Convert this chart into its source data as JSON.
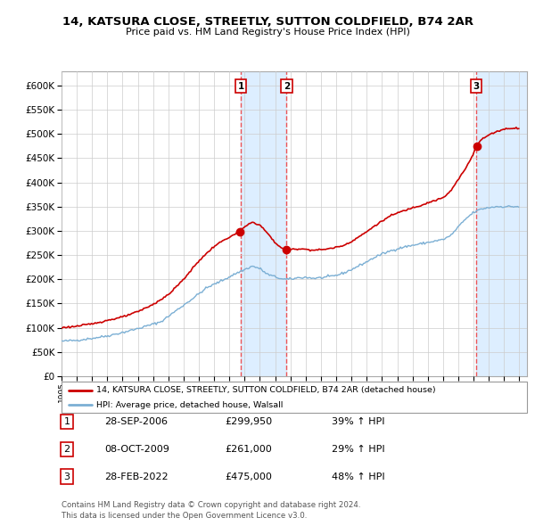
{
  "title": "14, KATSURA CLOSE, STREETLY, SUTTON COLDFIELD, B74 2AR",
  "subtitle": "Price paid vs. HM Land Registry's House Price Index (HPI)",
  "hpi_label": "HPI: Average price, detached house, Walsall",
  "property_label": "14, KATSURA CLOSE, STREETLY, SUTTON COLDFIELD, B74 2AR (detached house)",
  "sale_color": "#cc0000",
  "hpi_color": "#7bafd4",
  "background_color": "#ffffff",
  "grid_color": "#cccccc",
  "ylim": [
    0,
    630000
  ],
  "yticks": [
    0,
    50000,
    100000,
    150000,
    200000,
    250000,
    300000,
    350000,
    400000,
    450000,
    500000,
    550000,
    600000
  ],
  "sale_dates_dec": [
    2006.75,
    2009.75,
    2022.17
  ],
  "sale_prices": [
    299950,
    261000,
    475000
  ],
  "sale_labels": [
    "1",
    "2",
    "3"
  ],
  "vline_color": "#ee4444",
  "shade_color": "#ddeeff",
  "sale_info": [
    {
      "num": "1",
      "date": "28-SEP-2006",
      "price": "£299,950",
      "pct": "39% ↑ HPI"
    },
    {
      "num": "2",
      "date": "08-OCT-2009",
      "price": "£261,000",
      "pct": "29% ↑ HPI"
    },
    {
      "num": "3",
      "date": "28-FEB-2022",
      "price": "£475,000",
      "pct": "48% ↑ HPI"
    }
  ],
  "footer": "Contains HM Land Registry data © Crown copyright and database right 2024.\nThis data is licensed under the Open Government Licence v3.0.",
  "hpi_anchors_x": [
    1995.0,
    1996.0,
    1997.0,
    1998.0,
    1999.0,
    2000.0,
    2001.5,
    2002.5,
    2003.5,
    2004.5,
    2005.5,
    2006.5,
    2007.5,
    2008.0,
    2008.5,
    2009.0,
    2009.5,
    2010.0,
    2010.5,
    2011.0,
    2011.5,
    2012.0,
    2012.5,
    2013.0,
    2013.5,
    2014.0,
    2014.5,
    2015.0,
    2015.5,
    2016.0,
    2016.5,
    2017.0,
    2017.5,
    2018.0,
    2018.5,
    2019.0,
    2019.5,
    2020.0,
    2020.5,
    2021.0,
    2021.5,
    2022.0,
    2022.5,
    2023.0,
    2023.5,
    2024.0,
    2024.5
  ],
  "hpi_anchors_y": [
    72000,
    74000,
    78000,
    83000,
    90000,
    98000,
    112000,
    135000,
    158000,
    182000,
    197000,
    213000,
    227000,
    222000,
    210000,
    205000,
    200000,
    200000,
    203000,
    204000,
    202000,
    203000,
    205000,
    208000,
    213000,
    220000,
    228000,
    236000,
    245000,
    252000,
    258000,
    263000,
    267000,
    270000,
    273000,
    276000,
    279000,
    282000,
    290000,
    308000,
    325000,
    338000,
    345000,
    348000,
    350000,
    350000,
    350000
  ],
  "prop_anchors_x": [
    1995.0,
    1996.0,
    1997.0,
    1998.0,
    1999.0,
    2000.0,
    2001.0,
    2002.0,
    2003.0,
    2004.0,
    2005.0,
    2005.5,
    2006.0,
    2006.5,
    2006.75,
    2007.0,
    2007.5,
    2008.0,
    2008.5,
    2009.0,
    2009.5,
    2009.75,
    2010.0,
    2010.5,
    2011.0,
    2011.5,
    2012.0,
    2012.5,
    2013.0,
    2013.5,
    2014.0,
    2014.5,
    2015.0,
    2015.5,
    2016.0,
    2016.5,
    2017.0,
    2017.5,
    2018.0,
    2018.5,
    2019.0,
    2019.5,
    2020.0,
    2020.5,
    2021.0,
    2021.5,
    2022.0,
    2022.17,
    2022.5,
    2023.0,
    2023.5,
    2024.0,
    2024.5
  ],
  "prop_anchors_y": [
    100000,
    103000,
    108000,
    115000,
    122000,
    133000,
    148000,
    168000,
    200000,
    238000,
    268000,
    278000,
    287000,
    295000,
    299950,
    308000,
    318000,
    312000,
    295000,
    275000,
    263000,
    261000,
    261000,
    263000,
    262000,
    260000,
    261000,
    263000,
    266000,
    270000,
    278000,
    288000,
    298000,
    310000,
    320000,
    330000,
    337000,
    342000,
    348000,
    352000,
    358000,
    363000,
    368000,
    382000,
    406000,
    430000,
    460000,
    475000,
    488000,
    498000,
    505000,
    510000,
    512000
  ]
}
